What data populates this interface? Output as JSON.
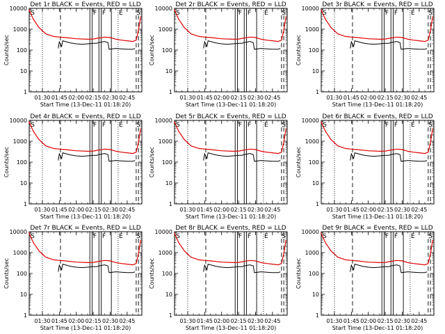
{
  "x_ticks": [
    "01:30",
    "01:45",
    "02:00",
    "02:15",
    "02:30",
    "02:45"
  ],
  "y_ticks": [
    "1",
    "10",
    "100",
    "1000",
    "10000"
  ],
  "ylabel": "Counts/sec",
  "xlabel": "Start Time (13-Dec-11 01:18:20)",
  "colors": {
    "events": "#000000",
    "lld": "#e00000",
    "axes": "#000000"
  },
  "chart_data": [
    {
      "title": "Det 1r BLACK = Events, RED = LLD",
      "type": "line",
      "top_markers": [
        "S",
        "F",
        "F",
        "E",
        "S"
      ]
    },
    {
      "title": "Det 2r BLACK = Events, RED = LLD",
      "type": "line",
      "top_markers": [
        "S",
        "F",
        "F",
        "E",
        "S"
      ]
    },
    {
      "title": "Det 3r BLACK = Events, RED = LLD",
      "type": "line",
      "top_markers": [
        "S",
        "F",
        "F",
        "E",
        "S"
      ]
    },
    {
      "title": "Det 4r BLACK = Events, RED = LLD",
      "type": "line",
      "top_markers": [
        "S",
        "F",
        "F",
        "E",
        "S"
      ]
    },
    {
      "title": "Det 5r BLACK = Events, RED = LLD",
      "type": "line",
      "top_markers": [
        "S",
        "F",
        "F",
        "E",
        "S"
      ]
    },
    {
      "title": "Det 6r BLACK = Events, RED = LLD",
      "type": "line",
      "top_markers": [
        "S",
        "F",
        "F",
        "E",
        "S"
      ]
    },
    {
      "title": "Det 7r BLACK = Events, RED = LLD",
      "type": "line",
      "top_markers": [
        "S",
        "F",
        "F",
        "E",
        "S"
      ]
    },
    {
      "title": "Det 8r BLACK = Events, RED = LLD",
      "type": "line",
      "top_markers": [
        "S",
        "F",
        "F",
        "E",
        "S"
      ]
    },
    {
      "title": "Det 9r BLACK = Events, RED = LLD",
      "type": "line",
      "top_markers": [
        "S",
        "F",
        "F",
        "E",
        "S"
      ]
    }
  ],
  "x_range": [
    "01:18:20",
    "02:58:00"
  ],
  "ylim": [
    1,
    10000
  ],
  "y_scale": "log",
  "series_events": {
    "x": [
      "01:18",
      "01:43",
      "01:44",
      "01:45",
      "01:47",
      "01:48",
      "01:55",
      "02:00",
      "02:05",
      "02:10",
      "02:15",
      "02:18",
      "02:20",
      "02:25",
      "02:28",
      "02:29",
      "02:35",
      "02:40",
      "02:45",
      "02:50",
      "02:52"
    ],
    "y": [
      null,
      null,
      120,
      250,
      150,
      280,
      220,
      200,
      190,
      200,
      210,
      210,
      230,
      260,
      230,
      110,
      120,
      115,
      110,
      110,
      120
    ]
  },
  "series_lld": {
    "x": [
      "01:18",
      "01:22",
      "01:27",
      "01:33",
      "01:40",
      "01:45",
      "01:50",
      "02:00",
      "02:10",
      "02:15",
      "02:20",
      "02:25",
      "02:30",
      "02:35",
      "02:40",
      "02:45",
      "02:50",
      "02:53",
      "02:55",
      "02:57"
    ],
    "y": [
      9000,
      3000,
      1200,
      600,
      450,
      420,
      400,
      350,
      330,
      340,
      380,
      420,
      400,
      330,
      300,
      280,
      260,
      300,
      900,
      4000
    ]
  },
  "vlines": [
    {
      "t": "01:30",
      "style": "dotted"
    },
    {
      "t": "01:46",
      "style": "dashed"
    },
    {
      "t": "02:12",
      "style": "solid"
    },
    {
      "t": "02:14",
      "style": "solid"
    },
    {
      "t": "02:20",
      "style": "solid"
    },
    {
      "t": "02:22",
      "style": "solid"
    },
    {
      "t": "02:31",
      "style": "solid"
    },
    {
      "t": "02:37",
      "style": "dotted"
    },
    {
      "t": "02:53",
      "style": "dashed"
    },
    {
      "t": "02:55",
      "style": "dashed"
    }
  ]
}
